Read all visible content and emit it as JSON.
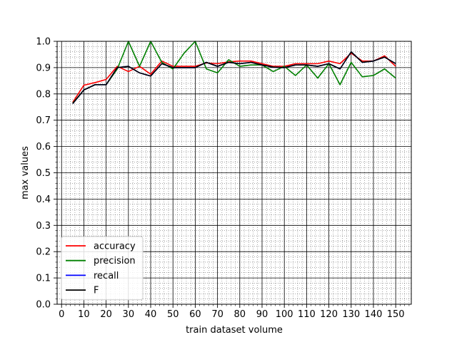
{
  "chart_data": {
    "type": "line",
    "title": "",
    "xlabel": "train dataset volume",
    "ylabel": "max values",
    "xlim": [
      -2,
      157
    ],
    "ylim": [
      0.0,
      1.0
    ],
    "x_ticks": [
      0,
      10,
      20,
      30,
      40,
      50,
      60,
      70,
      80,
      90,
      100,
      110,
      120,
      130,
      140,
      150
    ],
    "x_tick_labels": [
      "0",
      "10",
      "20",
      "30",
      "40",
      "50",
      "60",
      "70",
      "80",
      "90",
      "100",
      "110",
      "120",
      "130",
      "140",
      "150"
    ],
    "y_ticks": [
      0.0,
      0.1,
      0.2,
      0.3,
      0.4,
      0.5,
      0.6,
      0.7,
      0.8,
      0.9,
      1.0
    ],
    "y_tick_labels": [
      "0.0",
      "0.1",
      "0.2",
      "0.3",
      "0.4",
      "0.5",
      "0.6",
      "0.7",
      "0.8",
      "0.9",
      "1.0"
    ],
    "grid": "major and minor",
    "legend_position": "lower-left",
    "x": [
      5,
      10,
      15,
      20,
      25,
      30,
      35,
      40,
      45,
      50,
      55,
      60,
      65,
      70,
      75,
      80,
      85,
      90,
      95,
      100,
      105,
      110,
      115,
      120,
      125,
      130,
      135,
      140,
      145,
      150
    ],
    "series": [
      {
        "name": "accuracy",
        "color": "#ff0000",
        "values": [
          0.768,
          0.833,
          0.843,
          0.855,
          0.905,
          0.885,
          0.905,
          0.875,
          0.925,
          0.905,
          0.905,
          0.905,
          0.918,
          0.915,
          0.922,
          0.925,
          0.925,
          0.915,
          0.905,
          0.905,
          0.915,
          0.915,
          0.915,
          0.925,
          0.915,
          0.955,
          0.925,
          0.925,
          0.945,
          0.905
        ]
      },
      {
        "name": "precision",
        "color": "#008000",
        "values": [
          0.765,
          0.815,
          0.835,
          0.835,
          0.895,
          1.0,
          0.905,
          1.0,
          0.92,
          0.895,
          0.955,
          1.0,
          0.895,
          0.88,
          0.93,
          0.905,
          0.91,
          0.91,
          0.885,
          0.905,
          0.87,
          0.91,
          0.86,
          0.915,
          0.835,
          0.92,
          0.865,
          0.87,
          0.895,
          0.86
        ]
      },
      {
        "name": "recall",
        "color": "#0000ff",
        "values": [
          0.763,
          0.815,
          0.835,
          0.835,
          0.9,
          0.905,
          0.88,
          0.868,
          0.915,
          0.9,
          0.9,
          0.9,
          0.92,
          0.905,
          0.92,
          0.915,
          0.92,
          0.91,
          0.902,
          0.9,
          0.91,
          0.91,
          0.905,
          0.915,
          0.895,
          0.96,
          0.92,
          0.925,
          0.94,
          0.915
        ]
      },
      {
        "name": "F",
        "color": "#000000",
        "values": [
          0.763,
          0.815,
          0.835,
          0.835,
          0.9,
          0.905,
          0.88,
          0.868,
          0.915,
          0.9,
          0.9,
          0.9,
          0.92,
          0.905,
          0.92,
          0.915,
          0.92,
          0.91,
          0.902,
          0.9,
          0.91,
          0.91,
          0.905,
          0.915,
          0.895,
          0.96,
          0.92,
          0.925,
          0.94,
          0.915
        ]
      }
    ]
  }
}
